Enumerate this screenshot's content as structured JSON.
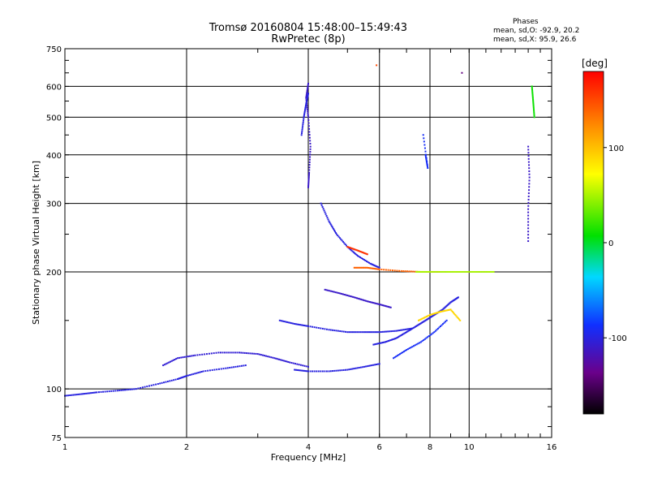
{
  "header": {
    "title_line1": "Tromsø 20160804 15:48:00–15:49:43",
    "title_line2": "RwPretec (8p)"
  },
  "phases": {
    "heading": "Phases",
    "line_o": "mean, sd,O: -92.9, 20.2",
    "line_x": "mean, sd,X:  95.9, 26.6"
  },
  "colorbar": {
    "label": "[deg]",
    "ticks": [
      {
        "value": 100,
        "label": "100"
      },
      {
        "value": 0,
        "label": "0"
      },
      {
        "value": -100,
        "label": "-100"
      }
    ],
    "range": [
      -180,
      180
    ],
    "scale": "rainbow (black-purple-blue-cyan-green-yellow-orange-red)"
  },
  "chart_data": {
    "type": "scatter",
    "title": "Tromsø 20160804 15:48:00–15:49:43",
    "subtitle": "RwPretec (8p)",
    "xlabel": "Frequency [MHz]",
    "ylabel": "Stationary phase Virtual Height [km]",
    "x_scale": "log",
    "y_scale": "log",
    "xlim": [
      1,
      16
    ],
    "ylim": [
      75,
      750
    ],
    "x_ticks": [
      1,
      2,
      4,
      6,
      8,
      10,
      16
    ],
    "y_ticks": [
      75,
      100,
      200,
      300,
      400,
      500,
      600,
      750
    ],
    "grid": true,
    "color_by": "phase [deg]",
    "series": [
      {
        "type": "trace",
        "points": [
          [
            1.0,
            96
          ],
          [
            1.1,
            97
          ],
          [
            1.2,
            98
          ],
          [
            1.35,
            99
          ],
          [
            1.5,
            100
          ],
          [
            1.7,
            103
          ],
          [
            1.9,
            106
          ],
          [
            2.0,
            108
          ],
          [
            2.2,
            111
          ],
          [
            2.5,
            113
          ],
          [
            2.8,
            115
          ]
        ],
        "phase": -100
      },
      {
        "type": "trace",
        "points": [
          [
            1.75,
            115
          ],
          [
            1.9,
            120
          ],
          [
            2.1,
            122
          ],
          [
            2.4,
            124
          ],
          [
            2.7,
            124
          ],
          [
            3.0,
            123
          ],
          [
            3.3,
            120
          ],
          [
            3.6,
            117
          ],
          [
            4.0,
            114
          ]
        ],
        "phase": -105
      },
      {
        "type": "trace",
        "points": [
          [
            3.7,
            112
          ],
          [
            4.0,
            111
          ],
          [
            4.5,
            111
          ],
          [
            5.0,
            112
          ],
          [
            5.5,
            114
          ],
          [
            6.0,
            116
          ]
        ],
        "phase": -100
      },
      {
        "type": "trace",
        "points": [
          [
            4.0,
            330
          ],
          [
            4.02,
            360
          ],
          [
            4.05,
            420
          ],
          [
            4.0,
            500
          ],
          [
            3.95,
            560
          ],
          [
            4.0,
            610
          ]
        ],
        "phase": -110
      },
      {
        "type": "trace",
        "points": [
          [
            3.85,
            450
          ],
          [
            3.9,
            500
          ],
          [
            3.95,
            540
          ],
          [
            4.0,
            575
          ]
        ],
        "phase": -100
      },
      {
        "type": "trace",
        "points": [
          [
            4.3,
            300
          ],
          [
            4.5,
            270
          ],
          [
            4.7,
            250
          ],
          [
            5.0,
            232
          ],
          [
            5.3,
            220
          ],
          [
            5.7,
            210
          ],
          [
            6.0,
            205
          ]
        ],
        "phase": -100
      },
      {
        "type": "trace",
        "points": [
          [
            5.2,
            205
          ],
          [
            5.6,
            205
          ],
          [
            6.0,
            203
          ],
          [
            6.8,
            201
          ],
          [
            7.6,
            200
          ],
          [
            8.4,
            200
          ]
        ],
        "phase": 140
      },
      {
        "type": "trace",
        "points": [
          [
            5.0,
            232
          ],
          [
            5.3,
            227
          ],
          [
            5.6,
            222
          ]
        ],
        "phase": 160
      },
      {
        "type": "trace",
        "points": [
          [
            7.4,
            200
          ],
          [
            8.0,
            200
          ],
          [
            8.8,
            200
          ],
          [
            9.6,
            200
          ],
          [
            10.5,
            200
          ],
          [
            11.5,
            200
          ]
        ],
        "phase": 50
      },
      {
        "type": "trace",
        "points": [
          [
            3.4,
            150
          ],
          [
            3.7,
            147
          ],
          [
            4.0,
            145
          ],
          [
            4.5,
            142
          ],
          [
            5.0,
            140
          ],
          [
            5.5,
            140
          ],
          [
            6.0,
            140
          ],
          [
            6.6,
            141
          ],
          [
            7.2,
            143
          ]
        ],
        "phase": -100
      },
      {
        "type": "trace",
        "points": [
          [
            5.8,
            130
          ],
          [
            6.2,
            132
          ],
          [
            6.6,
            135
          ],
          [
            7.0,
            140
          ],
          [
            7.4,
            145
          ],
          [
            7.8,
            150
          ],
          [
            8.2,
            155
          ],
          [
            8.6,
            160
          ],
          [
            9.0,
            167
          ],
          [
            9.4,
            172
          ]
        ],
        "phase": -100
      },
      {
        "type": "trace",
        "points": [
          [
            7.5,
            150
          ],
          [
            8.0,
            155
          ],
          [
            8.5,
            158
          ],
          [
            9.0,
            160
          ],
          [
            9.5,
            150
          ]
        ],
        "phase": 90
      },
      {
        "type": "trace",
        "points": [
          [
            4.4,
            180
          ],
          [
            4.8,
            176
          ],
          [
            5.2,
            172
          ],
          [
            5.6,
            168
          ],
          [
            6.0,
            165
          ],
          [
            6.4,
            162
          ]
        ],
        "phase": -110
      },
      {
        "type": "trace",
        "points": [
          [
            6.5,
            120
          ],
          [
            7.0,
            126
          ],
          [
            7.6,
            132
          ],
          [
            8.2,
            140
          ],
          [
            8.8,
            150
          ]
        ],
        "phase": -90
      },
      {
        "type": "trace",
        "points": [
          [
            14.0,
            240
          ],
          [
            14.0,
            290
          ],
          [
            14.1,
            350
          ],
          [
            14.0,
            420
          ]
        ],
        "phase": -110
      },
      {
        "type": "trace",
        "points": [
          [
            9.6,
            650
          ]
        ],
        "phase": -140
      },
      {
        "type": "trace",
        "points": [
          [
            5.9,
            680
          ]
        ],
        "phase": 150
      },
      {
        "type": "trace",
        "points": [
          [
            7.8,
            400
          ],
          [
            7.9,
            370
          ],
          [
            7.7,
            450
          ]
        ],
        "phase": -90
      },
      {
        "type": "trace",
        "points": [
          [
            14.3,
            600
          ],
          [
            14.4,
            550
          ],
          [
            14.5,
            500
          ]
        ],
        "phase": 10
      }
    ]
  }
}
